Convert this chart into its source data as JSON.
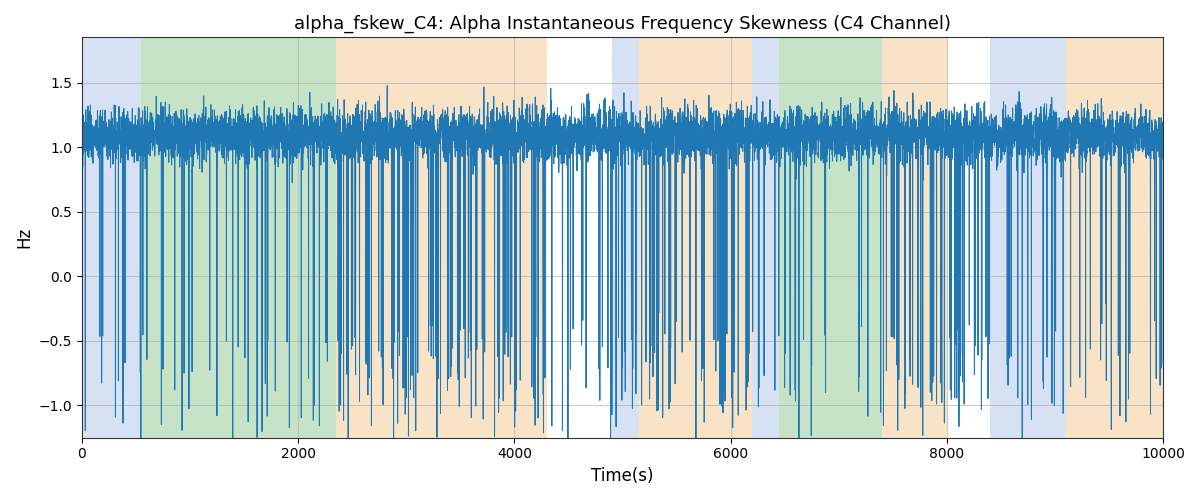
{
  "title": "alpha_fskew_C4: Alpha Instantaneous Frequency Skewness (C4 Channel)",
  "xlabel": "Time(s)",
  "ylabel": "Hz",
  "xlim": [
    0,
    10000
  ],
  "ylim": [
    -1.25,
    1.85
  ],
  "yticks": [
    -1.0,
    -0.5,
    0.0,
    0.5,
    1.0,
    1.5
  ],
  "xticks": [
    0,
    2000,
    4000,
    6000,
    8000,
    10000
  ],
  "line_color": "#1f77b4",
  "line_width": 0.7,
  "background_color": "#ffffff",
  "grid_color": "#b0b0b0",
  "bg_regions": [
    {
      "xstart": 0,
      "xend": 550,
      "color": "#aec6e8",
      "alpha": 0.5
    },
    {
      "xstart": 550,
      "xend": 2350,
      "color": "#90c990",
      "alpha": 0.5
    },
    {
      "xstart": 2350,
      "xend": 4300,
      "color": "#f5c990",
      "alpha": 0.5
    },
    {
      "xstart": 4900,
      "xend": 5150,
      "color": "#aec6e8",
      "alpha": 0.5
    },
    {
      "xstart": 5150,
      "xend": 6200,
      "color": "#f5c990",
      "alpha": 0.5
    },
    {
      "xstart": 6200,
      "xend": 6450,
      "color": "#aec6e8",
      "alpha": 0.5
    },
    {
      "xstart": 6450,
      "xend": 7400,
      "color": "#90c990",
      "alpha": 0.5
    },
    {
      "xstart": 7400,
      "xend": 8000,
      "color": "#f5c990",
      "alpha": 0.5
    },
    {
      "xstart": 8400,
      "xend": 9100,
      "color": "#aec6e8",
      "alpha": 0.5
    },
    {
      "xstart": 9100,
      "xend": 10000,
      "color": "#f5c990",
      "alpha": 0.5
    }
  ],
  "seed": 37,
  "n_points": 8000
}
